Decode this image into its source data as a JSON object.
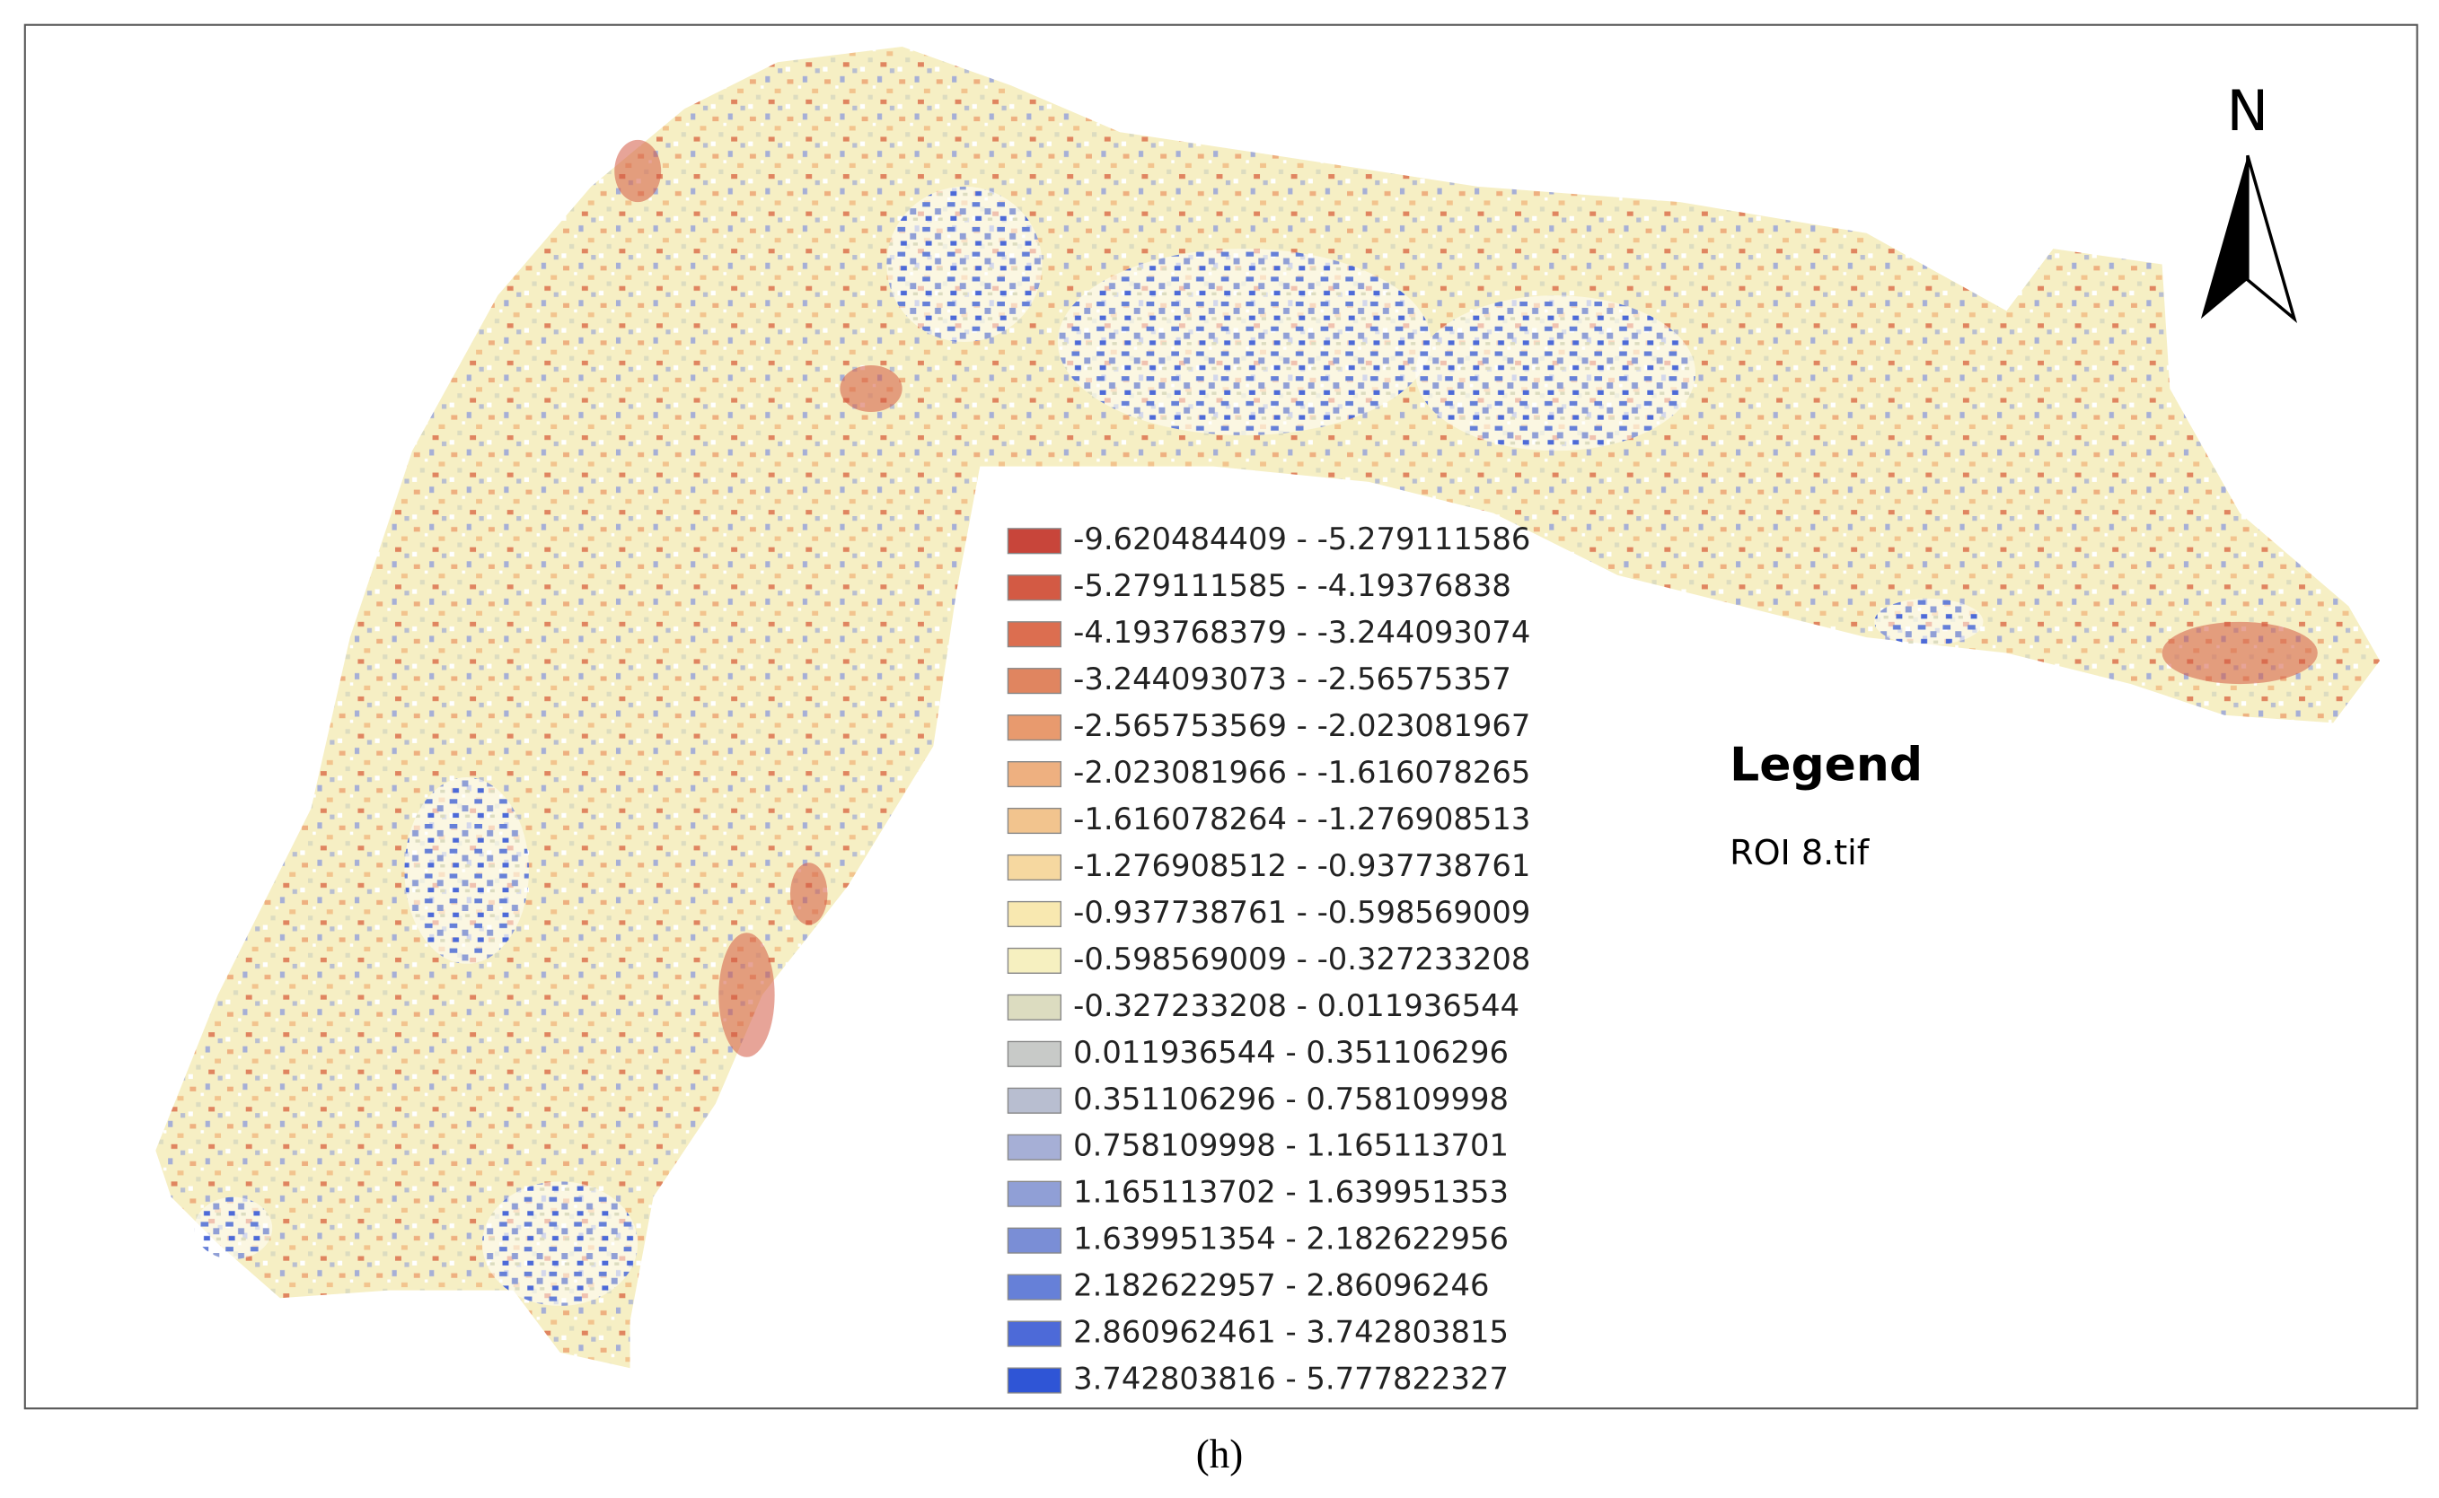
{
  "legend": {
    "title": "Legend",
    "layer": "ROI 8.tif",
    "items": [
      {
        "label": "-9.620484409 - -5.279111586",
        "color": "#c8453a"
      },
      {
        "label": "-5.279111585 - -4.19376838",
        "color": "#d35a44"
      },
      {
        "label": "-4.193768379 - -3.244093074",
        "color": "#dc6e50"
      },
      {
        "label": "-3.244093073 - -2.56575357",
        "color": "#e08560"
      },
      {
        "label": "-2.565753569 - -2.023081967",
        "color": "#e89a6e"
      },
      {
        "label": "-2.023081966 - -1.616078265",
        "color": "#eeb080"
      },
      {
        "label": "-1.616078264 - -1.276908513",
        "color": "#f2c48e"
      },
      {
        "label": "-1.276908512 - -0.937738761",
        "color": "#f6d8a0"
      },
      {
        "label": "-0.937738761 - -0.598569009",
        "color": "#f8e8b0"
      },
      {
        "label": "-0.598569009 - -0.327233208",
        "color": "#f6f0c0"
      },
      {
        "label": "-0.327233208 - 0.011936544",
        "color": "#dcdcc0"
      },
      {
        "label": "0.011936544 - 0.351106296",
        "color": "#c8cac8"
      },
      {
        "label": "0.351106296 - 0.758109998",
        "color": "#b8bed0"
      },
      {
        "label": "0.758109998 - 1.165113701",
        "color": "#a6afd6"
      },
      {
        "label": "1.165113702 - 1.639951353",
        "color": "#909fd6"
      },
      {
        "label": "1.639951354 - 2.182622956",
        "color": "#7a8ed6"
      },
      {
        "label": "2.182622957 - 2.86096246",
        "color": "#6680d8"
      },
      {
        "label": "2.860962461 - 3.742803815",
        "color": "#4d6ad8"
      },
      {
        "label": "3.742803816 - 5.777822327",
        "color": "#2f55d6"
      }
    ]
  },
  "north_arrow": "N",
  "caption": "(h)"
}
